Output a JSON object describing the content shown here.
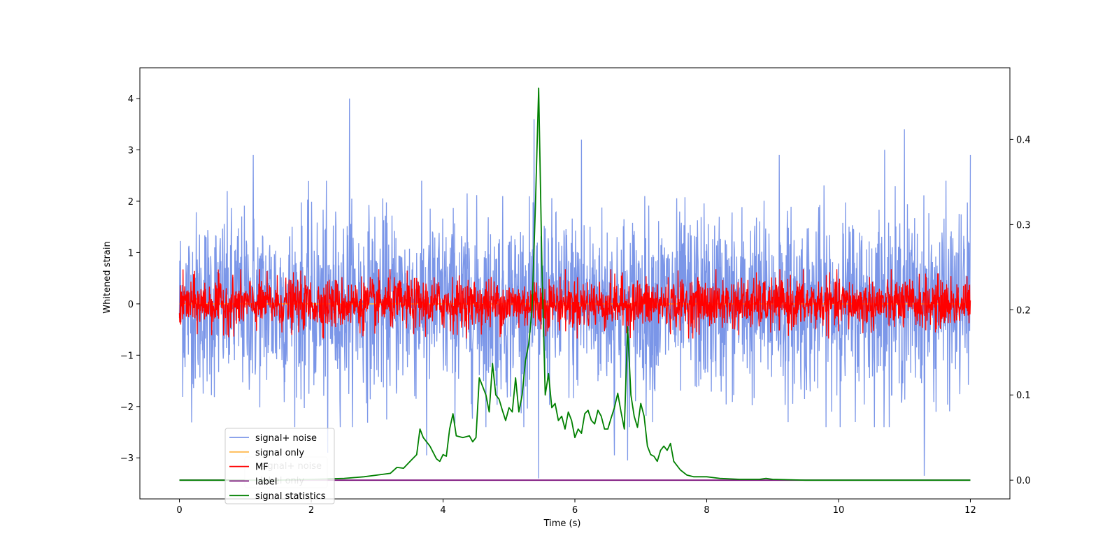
{
  "chart_data": {
    "type": "line",
    "xlabel": "Time (s)",
    "ylabel": "Whitened strain",
    "xlim": [
      -0.6,
      12.6
    ],
    "ylim_left": [
      -3.8,
      4.6
    ],
    "ylim_right": [
      -0.022,
      0.484
    ],
    "xticks": [
      0,
      2,
      4,
      6,
      8,
      10,
      12
    ],
    "xtick_labels": [
      "0",
      "2",
      "4",
      "6",
      "8",
      "10",
      "12"
    ],
    "yticks_left": [
      -3,
      -2,
      -1,
      0,
      1,
      2,
      3,
      4
    ],
    "ytick_labels_left": [
      "−3",
      "−2",
      "−1",
      "0",
      "1",
      "2",
      "3",
      "4"
    ],
    "yticks_right": [
      0.0,
      0.1,
      0.2,
      0.3,
      0.4
    ],
    "ytick_labels_right": [
      "0.0",
      "0.1",
      "0.2",
      "0.3",
      "0.4"
    ],
    "grid": false,
    "legend_placement": "lower-left",
    "series": [
      {
        "name": "signal+ noise",
        "axis": "left",
        "color": "#7b96e8",
        "kind": "noise",
        "x_range": [
          0,
          12
        ],
        "typical_band": [
          -1.6,
          1.6
        ],
        "spikes": [
          {
            "x": 2.58,
            "y": 4.0
          },
          {
            "x": 5.38,
            "y": 3.6
          },
          {
            "x": 5.45,
            "y": 4.2
          },
          {
            "x": 6.1,
            "y": 3.2
          },
          {
            "x": 11.0,
            "y": 3.4
          },
          {
            "x": 1.12,
            "y": 2.9
          },
          {
            "x": 5.45,
            "y": -3.4
          },
          {
            "x": 11.3,
            "y": -3.35
          },
          {
            "x": 3.75,
            "y": -2.95
          },
          {
            "x": 6.6,
            "y": -2.95
          },
          {
            "x": 6.8,
            "y": -3.05
          },
          {
            "x": 2.25,
            "y": -2.9
          },
          {
            "x": 9.1,
            "y": 2.9
          },
          {
            "x": 10.7,
            "y": 3.0
          },
          {
            "x": 12.0,
            "y": 2.9
          }
        ]
      },
      {
        "name": "signal only",
        "axis": "left",
        "color": "#ffb84d",
        "kind": "line",
        "points": [
          [
            0,
            0
          ],
          [
            12,
            0
          ]
        ]
      },
      {
        "name": "MF",
        "axis": "left",
        "color": "#ff0000",
        "kind": "noise",
        "x_range": [
          0,
          12
        ],
        "typical_band": [
          -0.45,
          0.45
        ]
      },
      {
        "name": "label",
        "axis": "right",
        "color": "#7b0f7b",
        "kind": "line",
        "points": [
          [
            0,
            0.0
          ],
          [
            12,
            0.0
          ]
        ]
      },
      {
        "name": "signal statistics",
        "axis": "right",
        "color": "#008000",
        "kind": "line",
        "points": [
          [
            0,
            0.0
          ],
          [
            0.5,
            0.0
          ],
          [
            1.0,
            0.0
          ],
          [
            1.5,
            0.0
          ],
          [
            2.0,
            0.001
          ],
          [
            2.5,
            0.002
          ],
          [
            2.8,
            0.004
          ],
          [
            3.0,
            0.006
          ],
          [
            3.2,
            0.008
          ],
          [
            3.3,
            0.015
          ],
          [
            3.4,
            0.014
          ],
          [
            3.5,
            0.022
          ],
          [
            3.6,
            0.03
          ],
          [
            3.65,
            0.06
          ],
          [
            3.7,
            0.05
          ],
          [
            3.8,
            0.04
          ],
          [
            3.9,
            0.025
          ],
          [
            3.95,
            0.022
          ],
          [
            4.0,
            0.03
          ],
          [
            4.05,
            0.028
          ],
          [
            4.1,
            0.06
          ],
          [
            4.15,
            0.078
          ],
          [
            4.2,
            0.052
          ],
          [
            4.3,
            0.05
          ],
          [
            4.4,
            0.052
          ],
          [
            4.45,
            0.045
          ],
          [
            4.5,
            0.05
          ],
          [
            4.55,
            0.12
          ],
          [
            4.6,
            0.11
          ],
          [
            4.65,
            0.1
          ],
          [
            4.7,
            0.08
          ],
          [
            4.75,
            0.137
          ],
          [
            4.8,
            0.1
          ],
          [
            4.85,
            0.095
          ],
          [
            4.9,
            0.082
          ],
          [
            4.95,
            0.07
          ],
          [
            5.0,
            0.085
          ],
          [
            5.05,
            0.08
          ],
          [
            5.1,
            0.12
          ],
          [
            5.15,
            0.08
          ],
          [
            5.2,
            0.1
          ],
          [
            5.25,
            0.14
          ],
          [
            5.3,
            0.16
          ],
          [
            5.35,
            0.2
          ],
          [
            5.4,
            0.32
          ],
          [
            5.45,
            0.46
          ],
          [
            5.5,
            0.25
          ],
          [
            5.55,
            0.1
          ],
          [
            5.6,
            0.125
          ],
          [
            5.65,
            0.085
          ],
          [
            5.7,
            0.09
          ],
          [
            5.75,
            0.07
          ],
          [
            5.8,
            0.075
          ],
          [
            5.85,
            0.06
          ],
          [
            5.9,
            0.08
          ],
          [
            5.95,
            0.07
          ],
          [
            6.0,
            0.05
          ],
          [
            6.05,
            0.06
          ],
          [
            6.1,
            0.055
          ],
          [
            6.15,
            0.078
          ],
          [
            6.2,
            0.082
          ],
          [
            6.25,
            0.07
          ],
          [
            6.3,
            0.066
          ],
          [
            6.35,
            0.082
          ],
          [
            6.4,
            0.075
          ],
          [
            6.45,
            0.06
          ],
          [
            6.5,
            0.06
          ],
          [
            6.55,
            0.073
          ],
          [
            6.6,
            0.085
          ],
          [
            6.65,
            0.102
          ],
          [
            6.7,
            0.08
          ],
          [
            6.75,
            0.06
          ],
          [
            6.8,
            0.18
          ],
          [
            6.85,
            0.1
          ],
          [
            6.9,
            0.075
          ],
          [
            6.95,
            0.062
          ],
          [
            7.0,
            0.09
          ],
          [
            7.05,
            0.075
          ],
          [
            7.1,
            0.04
          ],
          [
            7.15,
            0.03
          ],
          [
            7.2,
            0.028
          ],
          [
            7.25,
            0.022
          ],
          [
            7.3,
            0.035
          ],
          [
            7.35,
            0.04
          ],
          [
            7.4,
            0.035
          ],
          [
            7.45,
            0.043
          ],
          [
            7.5,
            0.022
          ],
          [
            7.6,
            0.012
          ],
          [
            7.7,
            0.006
          ],
          [
            7.8,
            0.004
          ],
          [
            8.0,
            0.004
          ],
          [
            8.2,
            0.002
          ],
          [
            8.5,
            0.001
          ],
          [
            8.8,
            0.001
          ],
          [
            8.9,
            0.002
          ],
          [
            9.0,
            0.001
          ],
          [
            9.5,
            0.0
          ],
          [
            10.0,
            0.0
          ],
          [
            11.0,
            0.0
          ],
          [
            12.0,
            0.0
          ]
        ]
      }
    ],
    "legend": [
      "signal+ noise",
      "signal only",
      "MF",
      "label",
      "signal statistics"
    ],
    "legend_ghost": [
      "signal+ noise",
      "label only"
    ]
  }
}
